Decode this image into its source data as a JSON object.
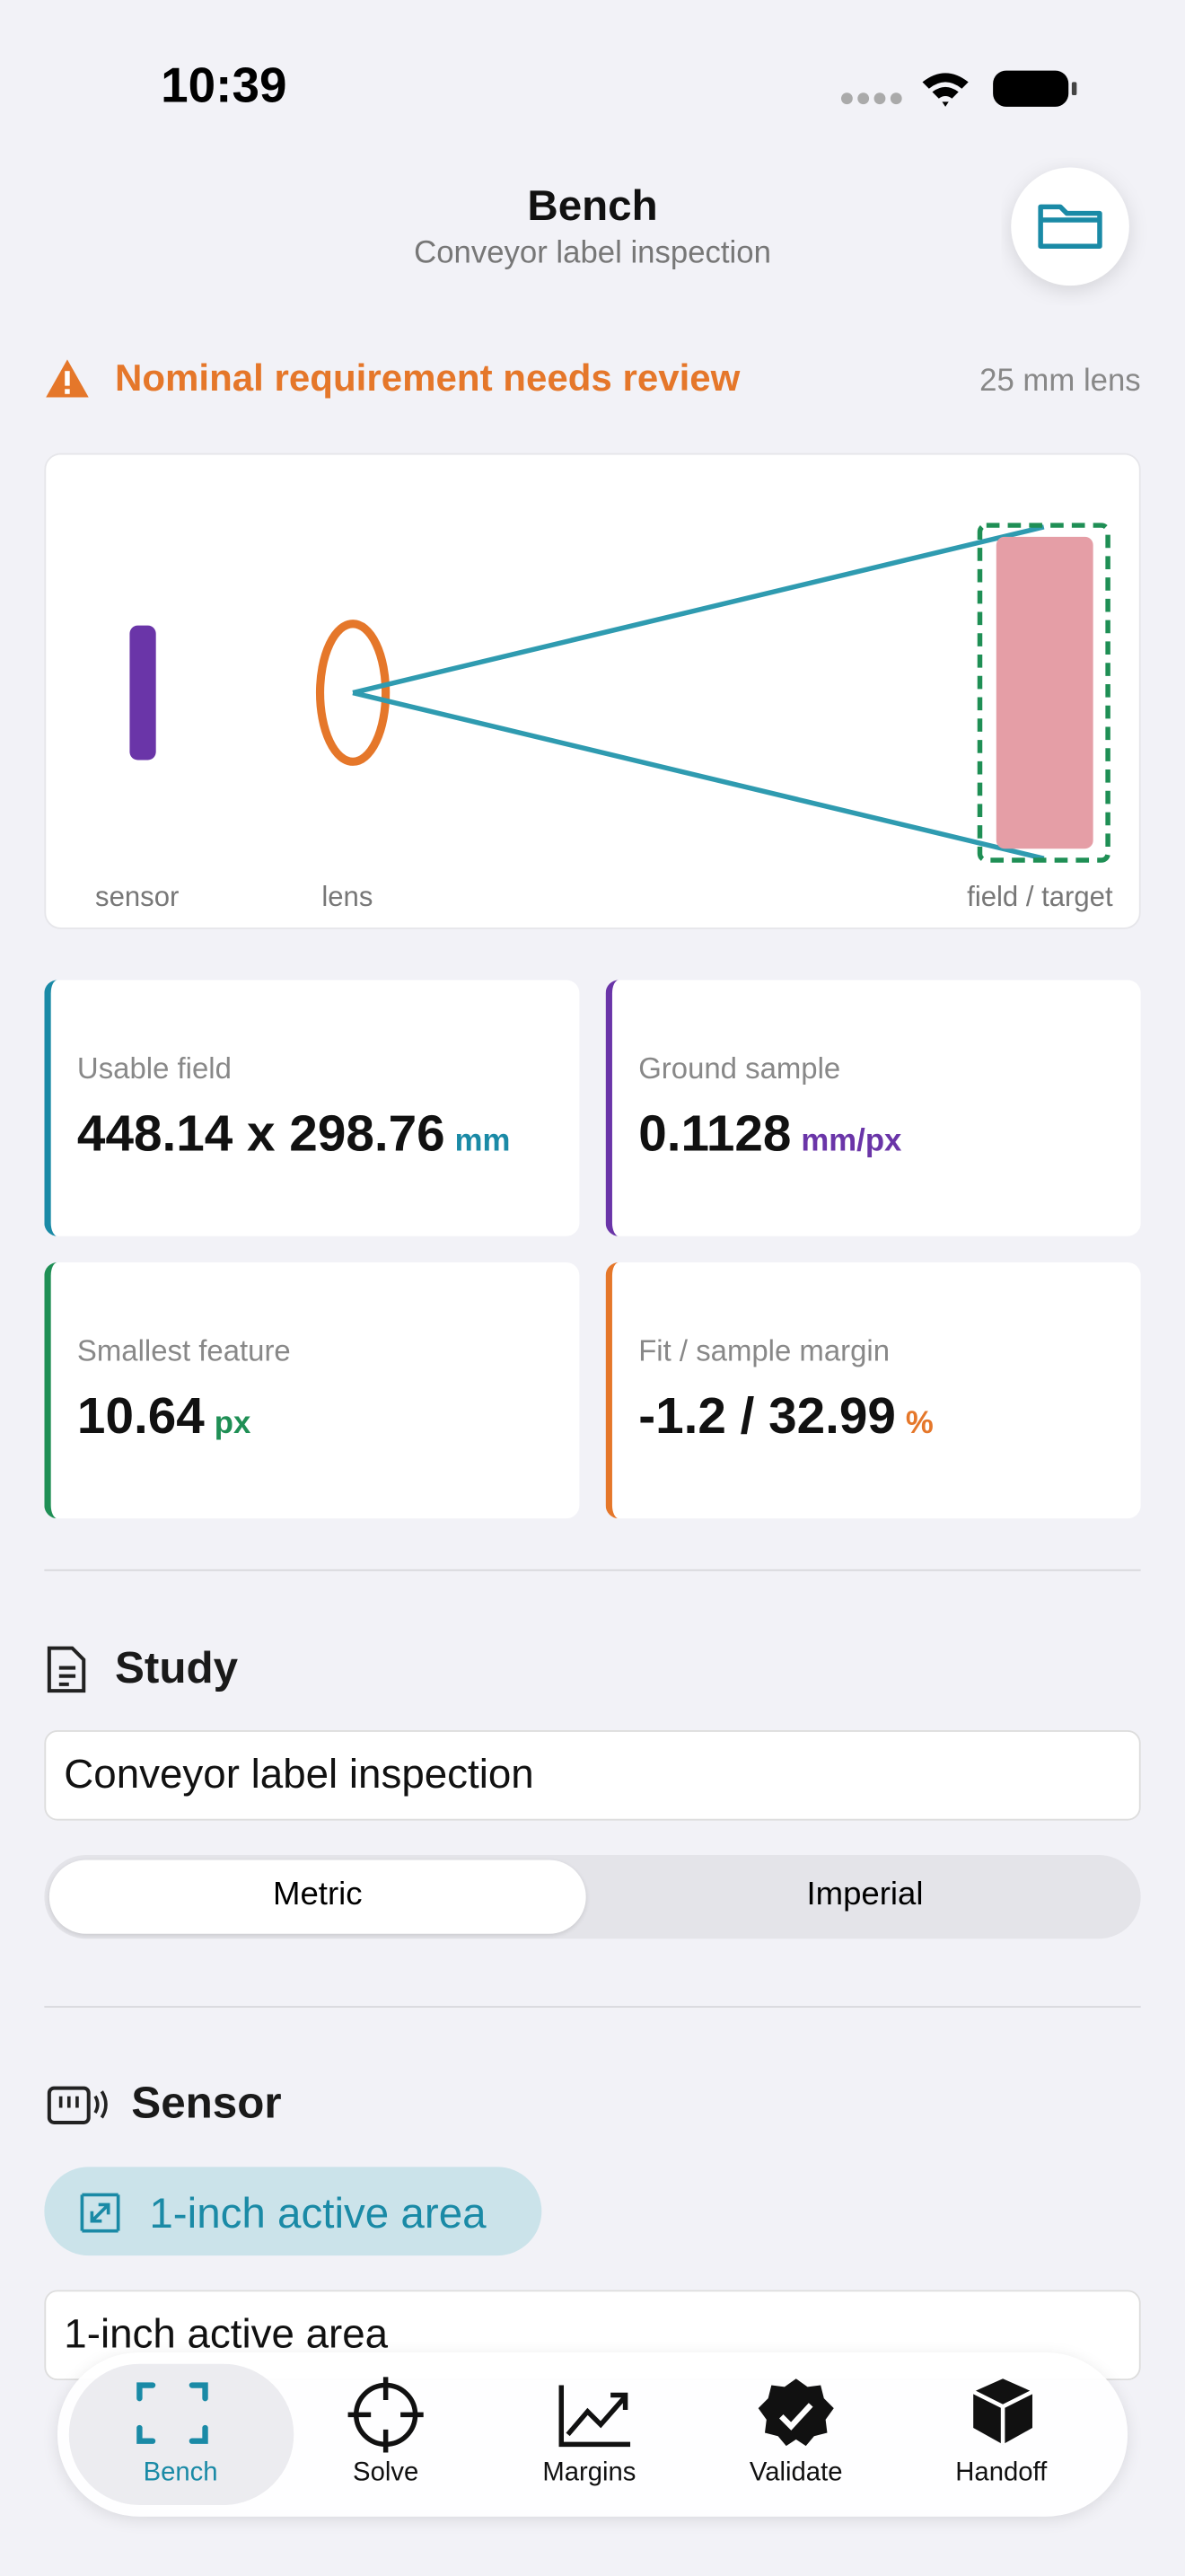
{
  "status": {
    "time": "10:39"
  },
  "header": {
    "title": "Bench",
    "subtitle": "Conveyor label inspection"
  },
  "banner": {
    "text": "Nominal requirement needs review",
    "lens": "25 mm lens"
  },
  "diagram": {
    "labels": [
      "sensor",
      "lens",
      "field / target"
    ]
  },
  "metrics": [
    {
      "label": "Usable field",
      "value": "448.14 x 298.76",
      "unit": "mm",
      "color": "#1a8aa6"
    },
    {
      "label": "Ground sample",
      "value": "0.1128",
      "unit": "mm/px",
      "color": "#6a35a8"
    },
    {
      "label": "Smallest feature",
      "value": "10.64",
      "unit": "px",
      "color": "#1f8f55"
    },
    {
      "label": "Fit / sample margin",
      "value": "-1.2 / 32.99",
      "unit": "%",
      "color": "#e5772a"
    }
  ],
  "study": {
    "title": "Study",
    "name": "Conveyor label inspection",
    "units": [
      "Metric",
      "Imperial"
    ]
  },
  "sensor": {
    "title": "Sensor",
    "chip": "1-inch active area",
    "field": "1-inch active area"
  },
  "tabs": [
    "Bench",
    "Solve",
    "Margins",
    "Validate",
    "Handoff"
  ]
}
